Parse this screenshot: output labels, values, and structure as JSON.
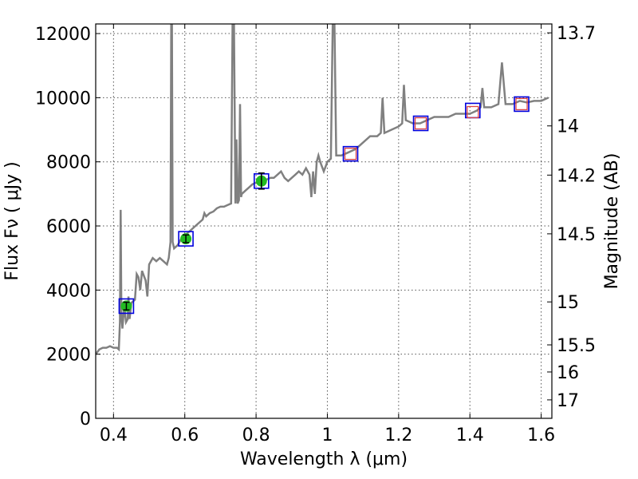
{
  "chart_data": {
    "type": "line",
    "xlabel": "Wavelength  λ (μm)",
    "ylabel": "Flux  F_ν  ( μJy )",
    "y2label": "Magnitude (AB)",
    "xlim": [
      0.35,
      1.63
    ],
    "ylim": [
      0,
      12300
    ],
    "grid": true,
    "x_ticks": [
      0.4,
      0.6,
      0.8,
      1.0,
      1.2,
      1.4,
      1.6
    ],
    "x_tick_labels": [
      "0.4",
      "0.6",
      "0.8",
      "1",
      "1.2",
      "1.4",
      "1.6"
    ],
    "y_ticks": [
      0,
      2000,
      4000,
      6000,
      8000,
      10000,
      12000
    ],
    "y_tick_labels": [
      "0",
      "2000",
      "4000",
      "6000",
      "8000",
      "10000",
      "12000"
    ],
    "y2_ticks": [
      {
        "label": "13.7",
        "mag": 13.7
      },
      {
        "label": "14",
        "mag": 14.0
      },
      {
        "label": "14.2",
        "mag": 14.2
      },
      {
        "label": "14.5",
        "mag": 14.5
      },
      {
        "label": "15",
        "mag": 15.0
      },
      {
        "label": "15.5",
        "mag": 15.5
      },
      {
        "label": "16",
        "mag": 16.0
      },
      {
        "label": "17",
        "mag": 17.0
      }
    ],
    "spectrum": {
      "color": "#808080",
      "points": [
        [
          0.35,
          2000
        ],
        [
          0.36,
          2150
        ],
        [
          0.37,
          2200
        ],
        [
          0.38,
          2200
        ],
        [
          0.39,
          2250
        ],
        [
          0.4,
          2200
        ],
        [
          0.41,
          2200
        ],
        [
          0.415,
          2150
        ],
        [
          0.418,
          3000
        ],
        [
          0.42,
          6500
        ],
        [
          0.422,
          3300
        ],
        [
          0.425,
          2800
        ],
        [
          0.43,
          3500
        ],
        [
          0.435,
          3000
        ],
        [
          0.44,
          3100
        ],
        [
          0.442,
          3800
        ],
        [
          0.445,
          3100
        ],
        [
          0.45,
          3600
        ],
        [
          0.46,
          3700
        ],
        [
          0.465,
          4500
        ],
        [
          0.47,
          4400
        ],
        [
          0.475,
          4000
        ],
        [
          0.48,
          4600
        ],
        [
          0.49,
          4300
        ],
        [
          0.495,
          3800
        ],
        [
          0.5,
          4800
        ],
        [
          0.51,
          5000
        ],
        [
          0.52,
          4900
        ],
        [
          0.53,
          5000
        ],
        [
          0.54,
          4900
        ],
        [
          0.55,
          4800
        ],
        [
          0.555,
          5000
        ],
        [
          0.56,
          5500
        ],
        [
          0.562,
          12300
        ],
        [
          0.564,
          12300
        ],
        [
          0.566,
          5500
        ],
        [
          0.57,
          5300
        ],
        [
          0.58,
          5400
        ],
        [
          0.59,
          5600
        ],
        [
          0.6,
          5700
        ],
        [
          0.61,
          5800
        ],
        [
          0.62,
          5900
        ],
        [
          0.63,
          6000
        ],
        [
          0.64,
          6100
        ],
        [
          0.65,
          6200
        ],
        [
          0.655,
          6400
        ],
        [
          0.66,
          6300
        ],
        [
          0.67,
          6400
        ],
        [
          0.68,
          6450
        ],
        [
          0.69,
          6550
        ],
        [
          0.7,
          6600
        ],
        [
          0.71,
          6600
        ],
        [
          0.72,
          6650
        ],
        [
          0.73,
          6700
        ],
        [
          0.734,
          12300
        ],
        [
          0.738,
          12300
        ],
        [
          0.742,
          6700
        ],
        [
          0.745,
          8700
        ],
        [
          0.748,
          6700
        ],
        [
          0.752,
          6800
        ],
        [
          0.755,
          9800
        ],
        [
          0.758,
          6900
        ],
        [
          0.76,
          7000
        ],
        [
          0.77,
          7100
        ],
        [
          0.78,
          7200
        ],
        [
          0.79,
          7300
        ],
        [
          0.8,
          7350
        ],
        [
          0.81,
          7300
        ],
        [
          0.82,
          7400
        ],
        [
          0.83,
          7450
        ],
        [
          0.84,
          7500
        ],
        [
          0.85,
          7500
        ],
        [
          0.86,
          7600
        ],
        [
          0.87,
          7700
        ],
        [
          0.88,
          7500
        ],
        [
          0.89,
          7400
        ],
        [
          0.9,
          7500
        ],
        [
          0.91,
          7600
        ],
        [
          0.92,
          7700
        ],
        [
          0.93,
          7600
        ],
        [
          0.94,
          7800
        ],
        [
          0.95,
          7600
        ],
        [
          0.955,
          6900
        ],
        [
          0.96,
          7700
        ],
        [
          0.965,
          7000
        ],
        [
          0.97,
          8000
        ],
        [
          0.975,
          8200
        ],
        [
          0.98,
          8000
        ],
        [
          0.99,
          7700
        ],
        [
          1.0,
          8000
        ],
        [
          1.01,
          8100
        ],
        [
          1.015,
          12300
        ],
        [
          1.02,
          12300
        ],
        [
          1.025,
          8200
        ],
        [
          1.04,
          8200
        ],
        [
          1.06,
          8300
        ],
        [
          1.08,
          8400
        ],
        [
          1.1,
          8600
        ],
        [
          1.12,
          8800
        ],
        [
          1.14,
          8800
        ],
        [
          1.15,
          8900
        ],
        [
          1.155,
          10000
        ],
        [
          1.16,
          8900
        ],
        [
          1.18,
          9000
        ],
        [
          1.2,
          9100
        ],
        [
          1.21,
          9200
        ],
        [
          1.215,
          10400
        ],
        [
          1.22,
          9300
        ],
        [
          1.24,
          9200
        ],
        [
          1.26,
          9200
        ],
        [
          1.28,
          9300
        ],
        [
          1.3,
          9400
        ],
        [
          1.32,
          9400
        ],
        [
          1.34,
          9400
        ],
        [
          1.36,
          9500
        ],
        [
          1.38,
          9500
        ],
        [
          1.4,
          9500
        ],
        [
          1.42,
          9600
        ],
        [
          1.43,
          9700
        ],
        [
          1.435,
          10300
        ],
        [
          1.44,
          9700
        ],
        [
          1.46,
          9700
        ],
        [
          1.48,
          9800
        ],
        [
          1.49,
          11100
        ],
        [
          1.5,
          9800
        ],
        [
          1.52,
          9800
        ],
        [
          1.54,
          9900
        ],
        [
          1.56,
          9850
        ],
        [
          1.58,
          9900
        ],
        [
          1.6,
          9900
        ],
        [
          1.62,
          10000
        ]
      ]
    },
    "photometry_filled": [
      {
        "x": 0.436,
        "y": 3500,
        "err": 120,
        "color": "#22bb22"
      },
      {
        "x": 0.603,
        "y": 5600,
        "err": 120,
        "color": "#22bb22"
      },
      {
        "x": 0.815,
        "y": 7400,
        "err": 250,
        "color": "#22bb22"
      }
    ],
    "photometry_open": [
      {
        "x": 1.065,
        "y": 8250
      },
      {
        "x": 1.262,
        "y": 9200
      },
      {
        "x": 1.408,
        "y": 9550
      },
      {
        "x": 1.545,
        "y": 9800
      }
    ],
    "model_boxes": [
      {
        "x": 0.436,
        "y": 3500
      },
      {
        "x": 0.603,
        "y": 5600
      },
      {
        "x": 0.815,
        "y": 7400
      },
      {
        "x": 1.065,
        "y": 8250
      },
      {
        "x": 1.262,
        "y": 9200
      },
      {
        "x": 1.408,
        "y": 9600
      },
      {
        "x": 1.545,
        "y": 9800
      }
    ],
    "colors": {
      "box": "#0000dd",
      "open_marker": "#dd4444",
      "filled_marker": "#22bb22"
    }
  }
}
